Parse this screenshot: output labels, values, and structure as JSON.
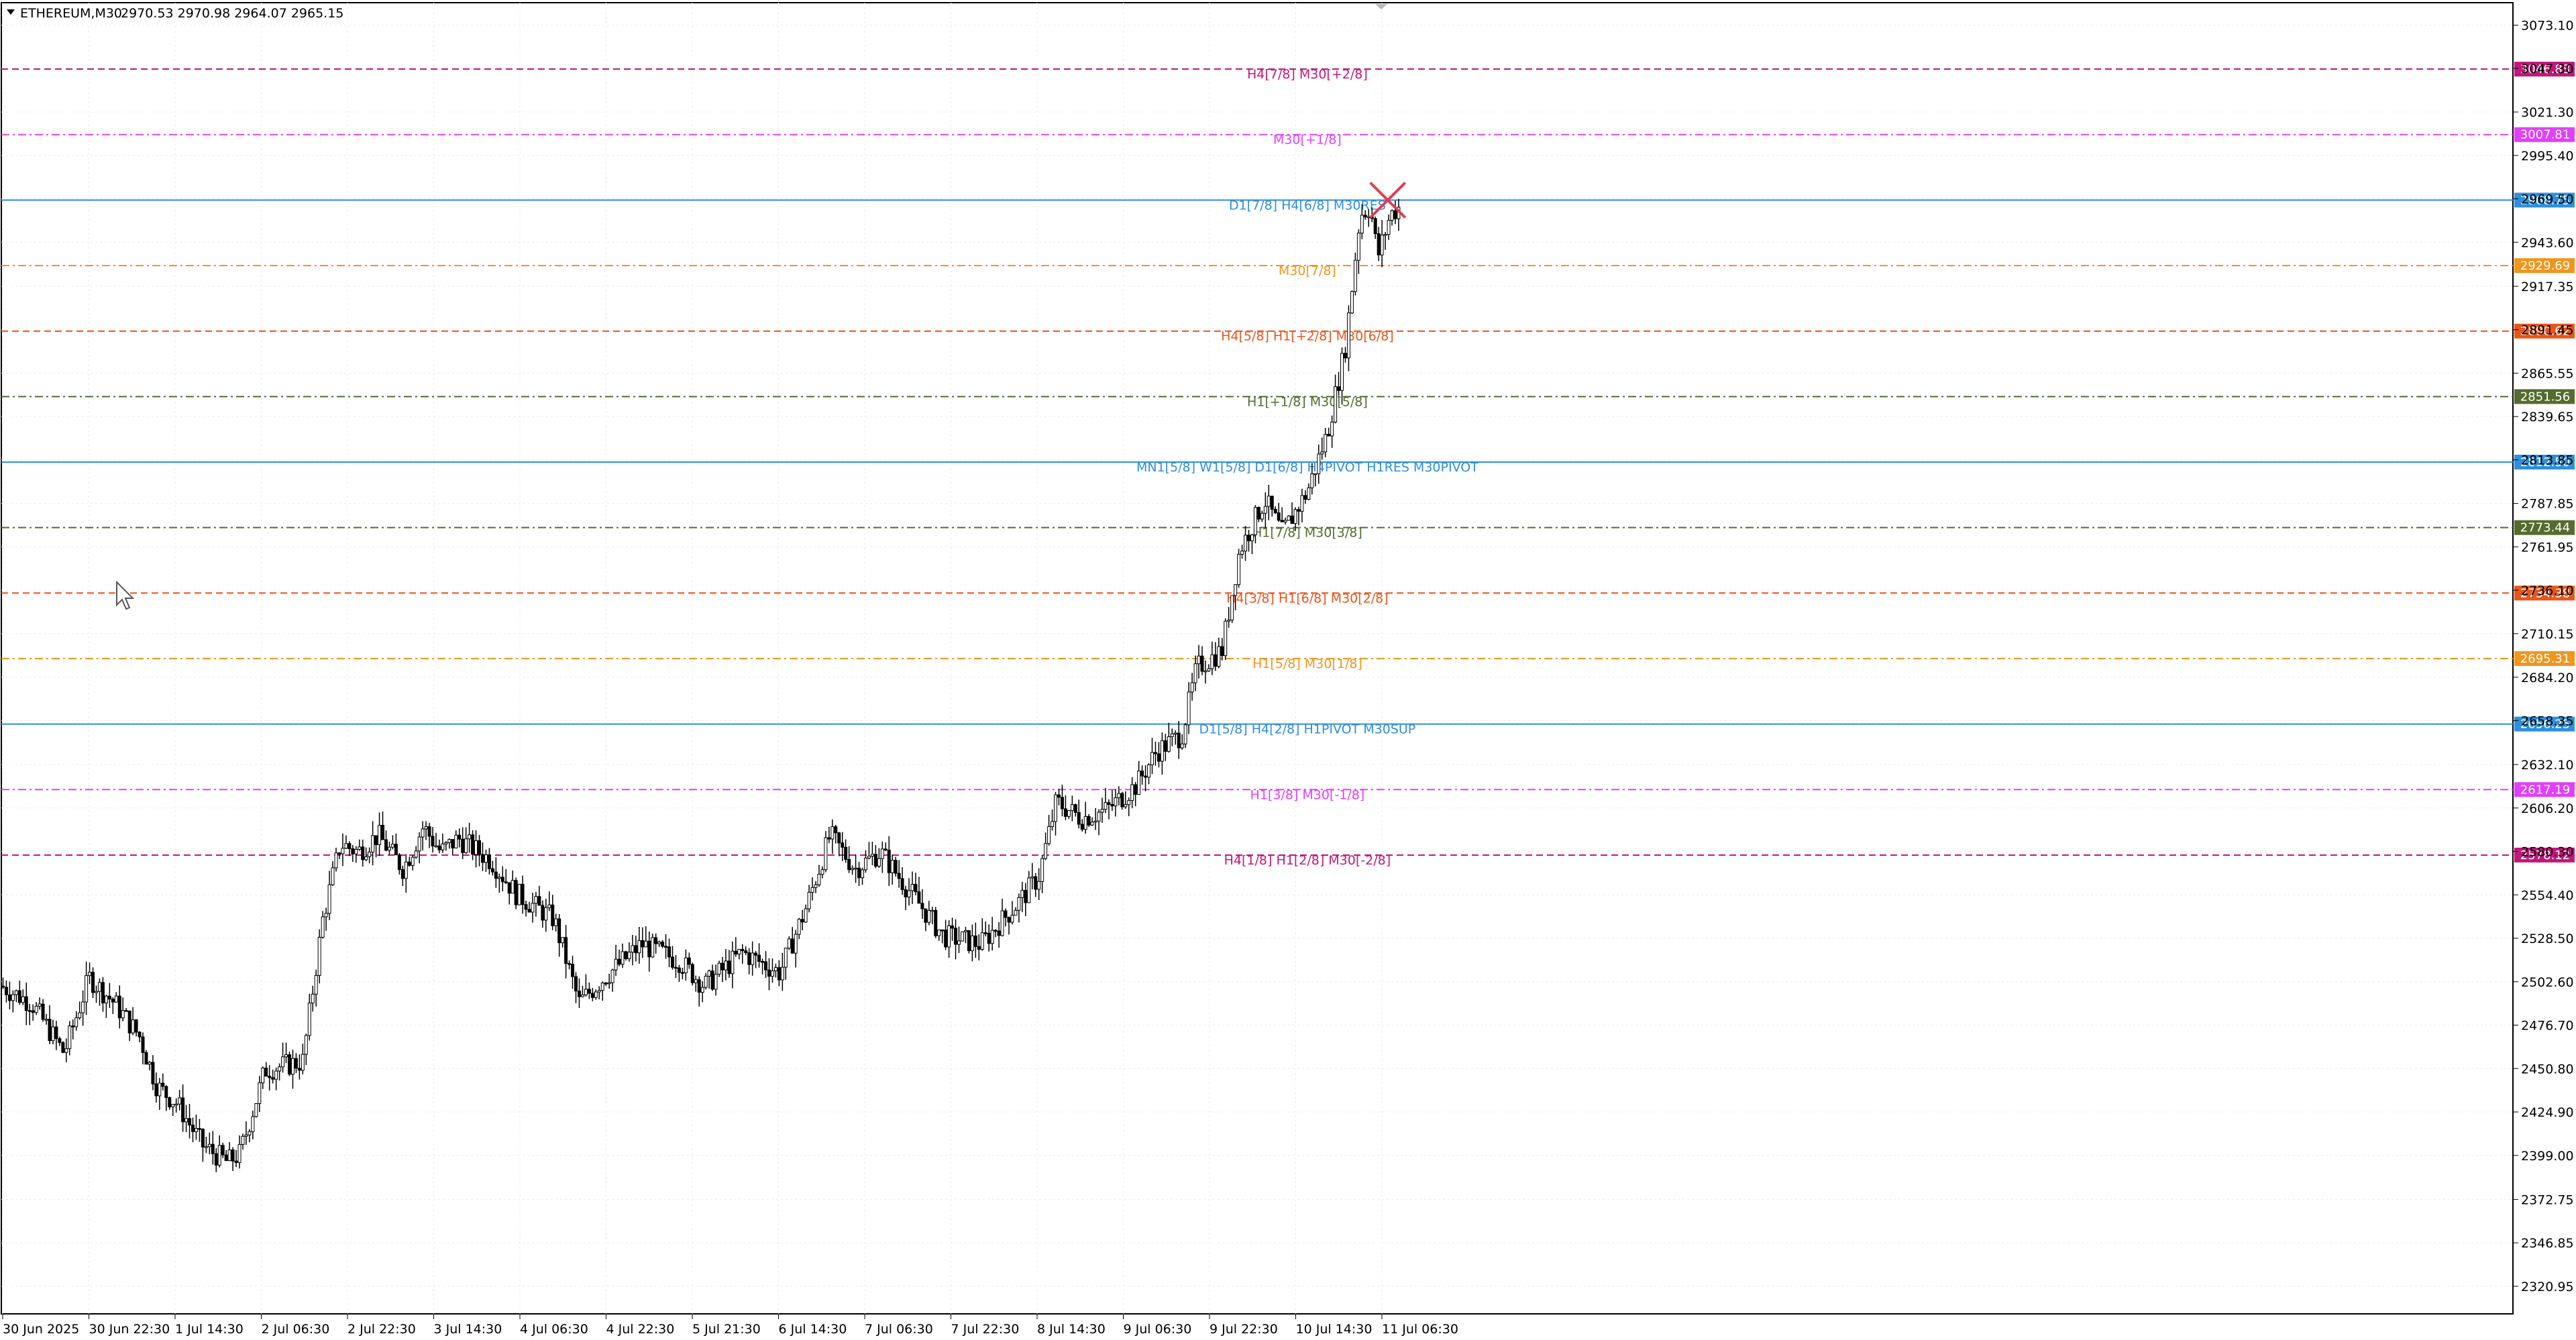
{
  "chart_data": {
    "type": "candlestick",
    "title": "ETHEREUM,M30",
    "ohlc": "2970.53 2970.98 2964.07 2965.15",
    "ylim": [
      2304.5,
      3086.5
    ],
    "grid": true,
    "y_ticks": [
      "3073.10",
      "3047.30",
      "3021.30",
      "2995.40",
      "2969.50",
      "2943.60",
      "2917.35",
      "2891.45",
      "2865.55",
      "2839.65",
      "2813.85",
      "2787.85",
      "2761.95",
      "2736.10",
      "2710.15",
      "2684.20",
      "2658.35",
      "2632.10",
      "2606.20",
      "2580.30",
      "2554.40",
      "2528.50",
      "2502.60",
      "2476.70",
      "2450.80",
      "2424.90",
      "2399.00",
      "2372.75",
      "2346.85",
      "2320.95"
    ],
    "x_ticks": [
      "30 Jun 2025",
      "30 Jun 22:30",
      "1 Jul 14:30",
      "2 Jul 06:30",
      "2 Jul 22:30",
      "3 Jul 14:30",
      "4 Jul 06:30",
      "4 Jul 22:30",
      "5 Jul 21:30",
      "6 Jul 14:30",
      "7 Jul 06:30",
      "7 Jul 22:30",
      "8 Jul 14:30",
      "9 Jul 06:30",
      "9 Jul 22:30",
      "10 Jul 14:30",
      "11 Jul 06:30"
    ],
    "levels": [
      {
        "price": 3046.88,
        "price_text": "3046.88",
        "label": "H4[7/8] M30[+2/8]",
        "color": "#c2187b",
        "style": "dash"
      },
      {
        "price": 3007.81,
        "price_text": "3007.81",
        "label": "M30[+1/8]",
        "color": "#e040fb",
        "style": "dashdot"
      },
      {
        "price": 2968.75,
        "price_text": "2968.75",
        "label": "D1[7/8] H4[6/8] M30RES",
        "color": "#2f8fdc",
        "style": "solid"
      },
      {
        "price": 2929.69,
        "price_text": "2929.69",
        "label": "M30[7/8]",
        "color": "#f0961e",
        "style": "dashdot"
      },
      {
        "price": 2890.62,
        "price_text": "2890.62",
        "label": "H4[5/8] H1[+2/8] M30[6/8]",
        "color": "#e8551c",
        "style": "dash"
      },
      {
        "price": 2851.56,
        "price_text": "2851.56",
        "label": "H1[+1/8] M30[5/8]",
        "color": "#556b2f",
        "style": "dashdot"
      },
      {
        "price": 2812.5,
        "price_text": "2812.50",
        "label": "MN1[5/8] W1[5/8] D1[6/8] H4PIVOT H1RES M30PIVOT",
        "color": "#2f8fdc",
        "style": "solid"
      },
      {
        "price": 2773.44,
        "price_text": "2773.44",
        "label": "H1[7/8] M30[3/8]",
        "color": "#556b2f",
        "style": "dashdot"
      },
      {
        "price": 2734.38,
        "price_text": "2734.38",
        "label": "H4[3/8] H1[6/8] M30[2/8]",
        "color": "#e8551c",
        "style": "dash"
      },
      {
        "price": 2695.31,
        "price_text": "2695.31",
        "label": "H1[5/8] M30[1/8]",
        "color": "#f0961e",
        "style": "dashdot"
      },
      {
        "price": 2656.25,
        "price_text": "2656.25",
        "label": "D1[5/8] H4[2/8] H1PIVOT M30SUP",
        "color": "#2f8fdc",
        "style": "solid"
      },
      {
        "price": 2617.19,
        "price_text": "2617.19",
        "label": "H1[3/8] M30[-1/8]",
        "color": "#e040fb",
        "style": "dashdot"
      },
      {
        "price": 2578.12,
        "price_text": "2578.12",
        "label": "H4[1/8] H1[2/8] M30[-2/8]",
        "color": "#c2187b",
        "style": "dash"
      }
    ],
    "series_path": [
      [
        0,
        2500
      ],
      [
        0.012,
        2490
      ],
      [
        0.025,
        2460
      ],
      [
        0.035,
        2505
      ],
      [
        0.045,
        2490
      ],
      [
        0.055,
        2470
      ],
      [
        0.062,
        2440
      ],
      [
        0.07,
        2430
      ],
      [
        0.08,
        2405
      ],
      [
        0.09,
        2395
      ],
      [
        0.095,
        2400
      ],
      [
        0.105,
        2450
      ],
      [
        0.12,
        2455
      ],
      [
        0.128,
        2540
      ],
      [
        0.135,
        2585
      ],
      [
        0.142,
        2580
      ],
      [
        0.15,
        2590
      ],
      [
        0.16,
        2570
      ],
      [
        0.168,
        2595
      ],
      [
        0.175,
        2580
      ],
      [
        0.182,
        2588
      ],
      [
        0.195,
        2575
      ],
      [
        0.205,
        2555
      ],
      [
        0.22,
        2540
      ],
      [
        0.23,
        2490
      ],
      [
        0.24,
        2505
      ],
      [
        0.255,
        2525
      ],
      [
        0.27,
        2515
      ],
      [
        0.28,
        2500
      ],
      [
        0.295,
        2520
      ],
      [
        0.31,
        2508
      ],
      [
        0.32,
        2545
      ],
      [
        0.33,
        2590
      ],
      [
        0.34,
        2570
      ],
      [
        0.35,
        2580
      ],
      [
        0.36,
        2560
      ],
      [
        0.375,
        2530
      ],
      [
        0.39,
        2525
      ],
      [
        0.405,
        2550
      ],
      [
        0.413,
        2565
      ],
      [
        0.42,
        2610
      ],
      [
        0.43,
        2600
      ],
      [
        0.44,
        2605
      ],
      [
        0.452,
        2620
      ],
      [
        0.46,
        2640
      ],
      [
        0.47,
        2650
      ],
      [
        0.476,
        2690
      ],
      [
        0.486,
        2700
      ],
      [
        0.493,
        2760
      ],
      [
        0.503,
        2790
      ],
      [
        0.51,
        2770
      ],
      [
        0.52,
        2795
      ],
      [
        0.528,
        2830
      ],
      [
        0.535,
        2880
      ],
      [
        0.541,
        2960
      ],
      [
        0.545,
        2965
      ],
      [
        0.548,
        2935
      ],
      [
        0.553,
        2960
      ],
      [
        0.557,
        2965
      ]
    ],
    "cross_marker": {
      "x": 0.552,
      "price": 2968.75
    }
  }
}
